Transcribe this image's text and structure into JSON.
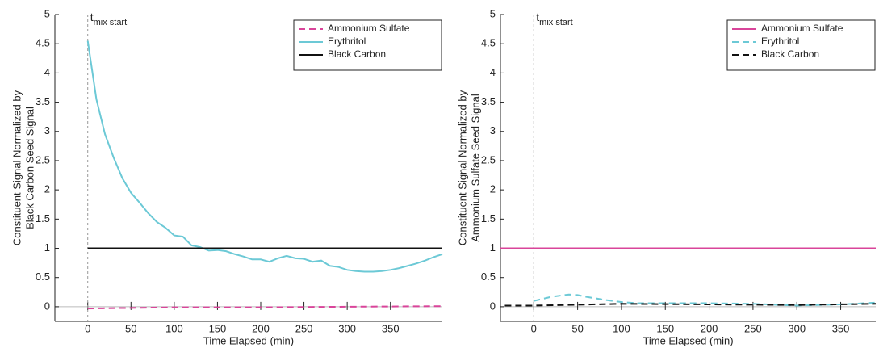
{
  "chart_data": [
    {
      "type": "line",
      "ylabel": [
        "Constituent Signal Normalized by",
        "Black Carbon Seed Signal"
      ],
      "xlabel": "Time Elapsed (min)",
      "annotation": {
        "text": "t",
        "subscript": "mix start",
        "x": 0
      },
      "xlim": [
        -38,
        410
      ],
      "ylim": [
        -0.25,
        5
      ],
      "xticks": [
        0,
        50,
        100,
        150,
        200,
        250,
        300,
        350
      ],
      "yticks": [
        0,
        0.5,
        1,
        1.5,
        2,
        2.5,
        3,
        3.5,
        4,
        4.5,
        5
      ],
      "legend": "top-right",
      "series": [
        {
          "name": "Ammonium Sulfate",
          "color": "#d9449a",
          "dash": true,
          "x": [
            0,
            100,
            200,
            300,
            410
          ],
          "values": [
            -0.03,
            -0.01,
            -0.01,
            0.0,
            0.01
          ]
        },
        {
          "name": "Erythritol",
          "color": "#6cc9d6",
          "dash": false,
          "x": [
            0,
            10,
            20,
            30,
            40,
            50,
            60,
            70,
            80,
            90,
            100,
            110,
            120,
            130,
            140,
            150,
            160,
            170,
            180,
            190,
            200,
            210,
            220,
            230,
            240,
            250,
            260,
            270,
            280,
            290,
            300,
            310,
            320,
            330,
            340,
            350,
            360,
            370,
            380,
            390,
            400,
            410
          ],
          "values": [
            4.55,
            3.55,
            2.95,
            2.55,
            2.2,
            1.95,
            1.78,
            1.6,
            1.45,
            1.35,
            1.22,
            1.2,
            1.05,
            1.02,
            0.96,
            0.97,
            0.95,
            0.9,
            0.86,
            0.81,
            0.81,
            0.77,
            0.83,
            0.87,
            0.83,
            0.82,
            0.77,
            0.79,
            0.7,
            0.68,
            0.63,
            0.61,
            0.6,
            0.6,
            0.61,
            0.63,
            0.66,
            0.7,
            0.74,
            0.79,
            0.85,
            0.9
          ]
        },
        {
          "name": "Black Carbon",
          "color": "#111111",
          "dash": false,
          "x": [
            0,
            410
          ],
          "values": [
            1,
            1
          ]
        }
      ]
    },
    {
      "type": "line",
      "ylabel": [
        "Constituent Signal Normalized by",
        "Ammonium Sulfate Seed Signal"
      ],
      "xlabel": "Time Elapsed (min)",
      "annotation": {
        "text": "t",
        "subscript": "mix start",
        "x": 0
      },
      "xlim": [
        -38,
        390
      ],
      "ylim": [
        -0.25,
        5
      ],
      "xticks": [
        0,
        50,
        100,
        150,
        200,
        250,
        300,
        350
      ],
      "yticks": [
        0,
        0.5,
        1,
        1.5,
        2,
        2.5,
        3,
        3.5,
        4,
        4.5,
        5
      ],
      "legend": "top-right",
      "series": [
        {
          "name": "Ammonium Sulfate",
          "color": "#d9449a",
          "dash": false,
          "x": [
            -38,
            390
          ],
          "values": [
            1,
            1
          ]
        },
        {
          "name": "Erythritol",
          "color": "#6cc9d6",
          "dash": true,
          "x": [
            0,
            20,
            40,
            50,
            60,
            80,
            100,
            120,
            150,
            200,
            250,
            300,
            350,
            390
          ],
          "values": [
            0.1,
            0.17,
            0.21,
            0.2,
            0.17,
            0.12,
            0.08,
            0.06,
            0.06,
            0.06,
            0.05,
            0.02,
            0.04,
            0.07
          ]
        },
        {
          "name": "Black Carbon",
          "color": "#111111",
          "dash": true,
          "x": [
            -33,
            0,
            100,
            200,
            300,
            390
          ],
          "values": [
            0.02,
            0.02,
            0.05,
            0.04,
            0.03,
            0.05
          ]
        }
      ]
    }
  ]
}
